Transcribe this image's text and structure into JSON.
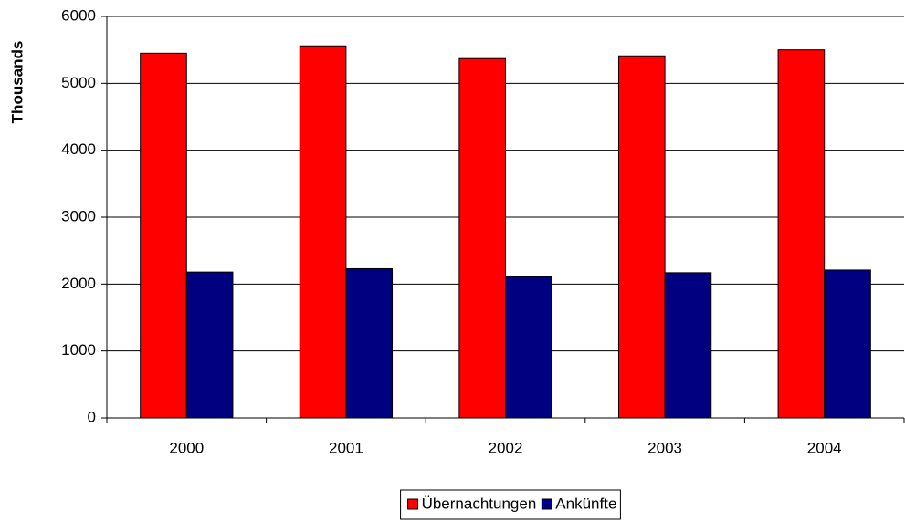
{
  "chart_data": {
    "type": "bar",
    "y_label": "Thousands",
    "categories": [
      "2000",
      "2001",
      "2002",
      "2003",
      "2004"
    ],
    "series": [
      {
        "name": "Übernachtungen",
        "color": "#ff0000",
        "values": [
          5450,
          5560,
          5370,
          5410,
          5500
        ]
      },
      {
        "name": "Ankünfte",
        "color": "#000080",
        "values": [
          2180,
          2230,
          2110,
          2170,
          2210
        ]
      }
    ],
    "ylim": [
      0,
      6000
    ],
    "yticks": [
      0,
      1000,
      2000,
      3000,
      4000,
      5000,
      6000
    ],
    "grid": true,
    "legend": "bottom"
  }
}
